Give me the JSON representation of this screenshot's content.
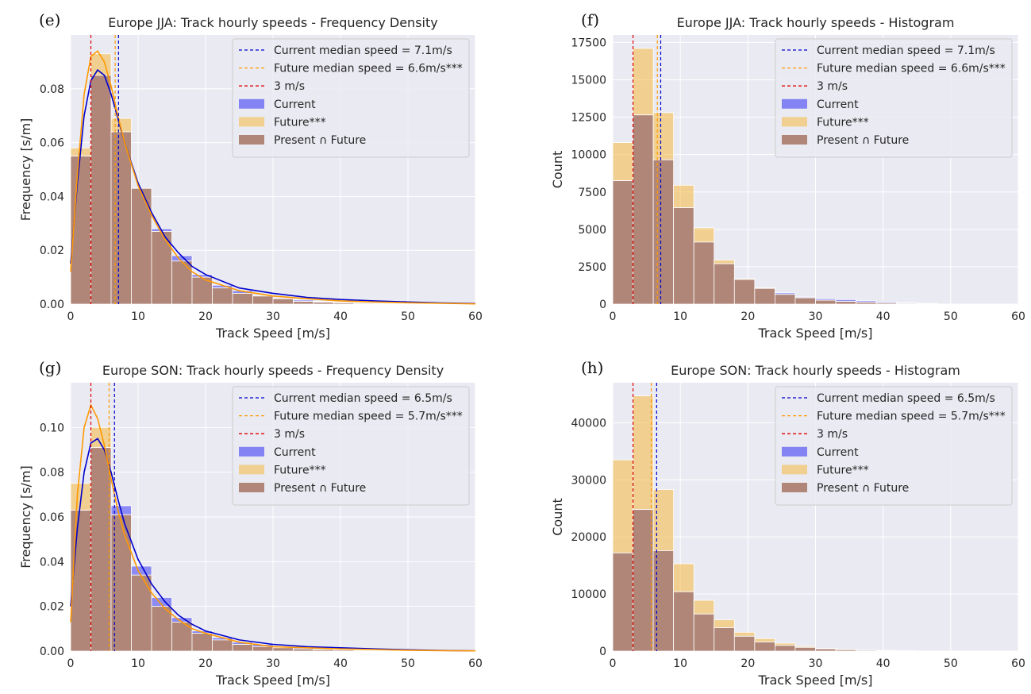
{
  "colors": {
    "current": "#4b4bf3",
    "future": "#f4b842",
    "overlap": "#b08679",
    "current_line": "#0000cc",
    "future_line": "#ff9900",
    "threshold_line": "#e00000"
  },
  "chart_data": [
    {
      "type": "histogram",
      "panel": "(e)",
      "title": "Europe JJA: Track hourly speeds - Frequency Density",
      "xlabel": "Track Speed [m/s]",
      "ylabel": "Frequency [s/m]",
      "xlim": [
        0,
        60
      ],
      "ylim": [
        0,
        0.1
      ],
      "xticks": [
        "0",
        "10",
        "20",
        "30",
        "40",
        "50",
        "60"
      ],
      "yticks": [
        "0.00",
        "0.02",
        "0.04",
        "0.06",
        "0.08"
      ],
      "ytick_values": [
        0,
        0.02,
        0.04,
        0.06,
        0.08
      ],
      "bin_width": 3,
      "bin_starts": [
        0,
        3,
        6,
        9,
        12,
        15,
        18,
        21,
        24,
        27,
        30,
        33,
        36,
        39,
        42,
        45,
        48,
        51,
        54,
        57
      ],
      "series": [
        {
          "name": "Current",
          "values": [
            0.055,
            0.085,
            0.064,
            0.043,
            0.028,
            0.018,
            0.011,
            0.007,
            0.005,
            0.003,
            0.002,
            0.0015,
            0.001,
            0.0007,
            0.0005,
            0.0003,
            0.0002,
            0.0001,
            0.0001,
            0.0001
          ]
        },
        {
          "name": "Future***",
          "values": [
            0.058,
            0.093,
            0.069,
            0.043,
            0.027,
            0.016,
            0.01,
            0.006,
            0.004,
            0.003,
            0.002,
            0.001,
            0.0007,
            0.0005,
            0.0003,
            0.0002,
            0.0001,
            0.0001,
            0.0001,
            0.0001
          ]
        }
      ],
      "kde": [
        {
          "name": "Current",
          "x": [
            0,
            1,
            2,
            3,
            4,
            5,
            6,
            7,
            8,
            10,
            12,
            14,
            16,
            18,
            20,
            25,
            30,
            35,
            40,
            45,
            50,
            55,
            60
          ],
          "y": [
            0.015,
            0.045,
            0.07,
            0.083,
            0.087,
            0.085,
            0.078,
            0.069,
            0.06,
            0.045,
            0.034,
            0.025,
            0.019,
            0.014,
            0.011,
            0.006,
            0.004,
            0.0025,
            0.0017,
            0.0012,
            0.0008,
            0.0004,
            0.0002
          ]
        },
        {
          "name": "Future***",
          "x": [
            0,
            1,
            2,
            3,
            4,
            5,
            6,
            7,
            8,
            10,
            12,
            14,
            16,
            18,
            20,
            25,
            30,
            35,
            40,
            45,
            50,
            55,
            60
          ],
          "y": [
            0.012,
            0.048,
            0.078,
            0.092,
            0.094,
            0.09,
            0.081,
            0.07,
            0.06,
            0.044,
            0.033,
            0.024,
            0.017,
            0.012,
            0.009,
            0.005,
            0.003,
            0.002,
            0.0012,
            0.0008,
            0.0005,
            0.0003,
            0.0001
          ]
        }
      ],
      "vlines": [
        {
          "x": 7.1,
          "kind": "current_line"
        },
        {
          "x": 6.6,
          "kind": "future_line"
        },
        {
          "x": 3,
          "kind": "threshold_line"
        }
      ],
      "legend": [
        "Current median speed = 7.1m/s",
        "Future median speed = 6.6m/s***",
        "3 m/s",
        "Current",
        "Future***",
        "Present ∩ Future"
      ],
      "legend_position": "top-right"
    },
    {
      "type": "histogram",
      "panel": "(f)",
      "title": "Europe JJA: Track hourly speeds - Histogram",
      "xlabel": "Track Speed [m/s]",
      "ylabel": "Count",
      "xlim": [
        0,
        60
      ],
      "ylim": [
        0,
        18000
      ],
      "xticks": [
        "0",
        "10",
        "20",
        "30",
        "40",
        "50",
        "60"
      ],
      "yticks": [
        "0",
        "2500",
        "5000",
        "7500",
        "10000",
        "12500",
        "15000",
        "17500"
      ],
      "ytick_values": [
        0,
        2500,
        5000,
        7500,
        10000,
        12500,
        15000,
        17500
      ],
      "bin_width": 3,
      "bin_starts": [
        0,
        3,
        6,
        9,
        12,
        15,
        18,
        21,
        24,
        27,
        30,
        33,
        36,
        39,
        42,
        45
      ],
      "series": [
        {
          "name": "Current",
          "values": [
            8250,
            12650,
            9650,
            6450,
            4150,
            2700,
            1650,
            1050,
            750,
            480,
            360,
            300,
            220,
            150,
            100,
            50
          ]
        },
        {
          "name": "Future***",
          "values": [
            10800,
            17100,
            12800,
            7950,
            5100,
            2950,
            1700,
            1100,
            650,
            420,
            260,
            180,
            120,
            80,
            50,
            30
          ]
        }
      ],
      "vlines": [
        {
          "x": 7.1,
          "kind": "current_line"
        },
        {
          "x": 6.6,
          "kind": "future_line"
        },
        {
          "x": 3,
          "kind": "threshold_line"
        }
      ],
      "legend": [
        "Current median speed = 7.1m/s",
        "Future median speed = 6.6m/s***",
        "3 m/s",
        "Current",
        "Future***",
        "Present ∩ Future"
      ],
      "legend_position": "top-right"
    },
    {
      "type": "histogram",
      "panel": "(g)",
      "title": "Europe SON: Track hourly speeds - Frequency Density",
      "xlabel": "Track Speed [m/s]",
      "ylabel": "Frequency [s/m]",
      "xlim": [
        0,
        60
      ],
      "ylim": [
        0,
        0.12
      ],
      "xticks": [
        "0",
        "10",
        "20",
        "30",
        "40",
        "50",
        "60"
      ],
      "yticks": [
        "0.00",
        "0.02",
        "0.04",
        "0.06",
        "0.08",
        "0.10"
      ],
      "ytick_values": [
        0,
        0.02,
        0.04,
        0.06,
        0.08,
        0.1
      ],
      "bin_width": 3,
      "bin_starts": [
        0,
        3,
        6,
        9,
        12,
        15,
        18,
        21,
        24,
        27,
        30,
        33,
        36,
        39,
        42,
        45,
        48,
        51,
        54,
        57
      ],
      "series": [
        {
          "name": "Current",
          "values": [
            0.063,
            0.091,
            0.065,
            0.038,
            0.024,
            0.015,
            0.009,
            0.006,
            0.004,
            0.003,
            0.002,
            0.0015,
            0.001,
            0.0008,
            0.0005,
            0.0004,
            0.0003,
            0.0002,
            0.0001,
            0.0001
          ]
        },
        {
          "name": "Future***",
          "values": [
            0.075,
            0.1,
            0.061,
            0.034,
            0.02,
            0.013,
            0.008,
            0.005,
            0.003,
            0.002,
            0.0015,
            0.001,
            0.0007,
            0.0005,
            0.0003,
            0.0002,
            0.0002,
            0.0001,
            0.0001,
            0.0001
          ]
        }
      ],
      "kde": [
        {
          "name": "Current",
          "x": [
            0,
            1,
            2,
            3,
            4,
            5,
            6,
            7,
            8,
            10,
            12,
            14,
            16,
            18,
            20,
            25,
            30,
            35,
            40,
            45,
            50,
            55,
            60
          ],
          "y": [
            0.02,
            0.055,
            0.08,
            0.093,
            0.095,
            0.09,
            0.08,
            0.068,
            0.057,
            0.041,
            0.03,
            0.022,
            0.016,
            0.012,
            0.009,
            0.005,
            0.003,
            0.002,
            0.0015,
            0.001,
            0.0006,
            0.0003,
            0.0001
          ]
        },
        {
          "name": "Future***",
          "x": [
            0,
            1,
            2,
            3,
            4,
            5,
            6,
            7,
            8,
            10,
            12,
            14,
            16,
            18,
            20,
            25,
            30,
            35,
            40,
            45,
            50,
            55,
            60
          ],
          "y": [
            0.013,
            0.07,
            0.1,
            0.11,
            0.104,
            0.092,
            0.077,
            0.063,
            0.052,
            0.036,
            0.026,
            0.019,
            0.014,
            0.01,
            0.008,
            0.004,
            0.002,
            0.0015,
            0.001,
            0.0007,
            0.0004,
            0.0002,
            0.0001
          ]
        }
      ],
      "vlines": [
        {
          "x": 6.5,
          "kind": "current_line"
        },
        {
          "x": 5.7,
          "kind": "future_line"
        },
        {
          "x": 3,
          "kind": "threshold_line"
        }
      ],
      "legend": [
        "Current median speed = 6.5m/s",
        "Future median speed = 5.7m/s***",
        "3 m/s",
        "Current",
        "Future***",
        "Present ∩ Future"
      ],
      "legend_position": "top-right"
    },
    {
      "type": "histogram",
      "panel": "(h)",
      "title": "Europe SON: Track hourly speeds - Histogram",
      "xlabel": "Track Speed [m/s]",
      "ylabel": "Count",
      "xlim": [
        0,
        60
      ],
      "ylim": [
        0,
        47000
      ],
      "xticks": [
        "0",
        "10",
        "20",
        "30",
        "40",
        "50",
        "60"
      ],
      "yticks": [
        "0",
        "10000",
        "20000",
        "30000",
        "40000"
      ],
      "ytick_values": [
        0,
        10000,
        20000,
        30000,
        40000
      ],
      "bin_width": 3,
      "bin_starts": [
        0,
        3,
        6,
        9,
        12,
        15,
        18,
        21,
        24,
        27,
        30,
        33,
        36,
        39,
        42
      ],
      "series": [
        {
          "name": "Current",
          "values": [
            17200,
            24800,
            17600,
            10400,
            6500,
            4100,
            2600,
            1600,
            1000,
            650,
            400,
            250,
            180,
            120,
            80
          ]
        },
        {
          "name": "Future***",
          "values": [
            33500,
            44700,
            28300,
            15300,
            8900,
            5500,
            3300,
            2200,
            1400,
            850,
            500,
            300,
            150,
            80,
            40
          ]
        }
      ],
      "vlines": [
        {
          "x": 6.5,
          "kind": "current_line"
        },
        {
          "x": 5.7,
          "kind": "future_line"
        },
        {
          "x": 3,
          "kind": "threshold_line"
        }
      ],
      "legend": [
        "Current median speed = 6.5m/s",
        "Future median speed = 5.7m/s***",
        "3 m/s",
        "Current",
        "Future***",
        "Present ∩ Future"
      ],
      "legend_position": "top-right"
    }
  ]
}
